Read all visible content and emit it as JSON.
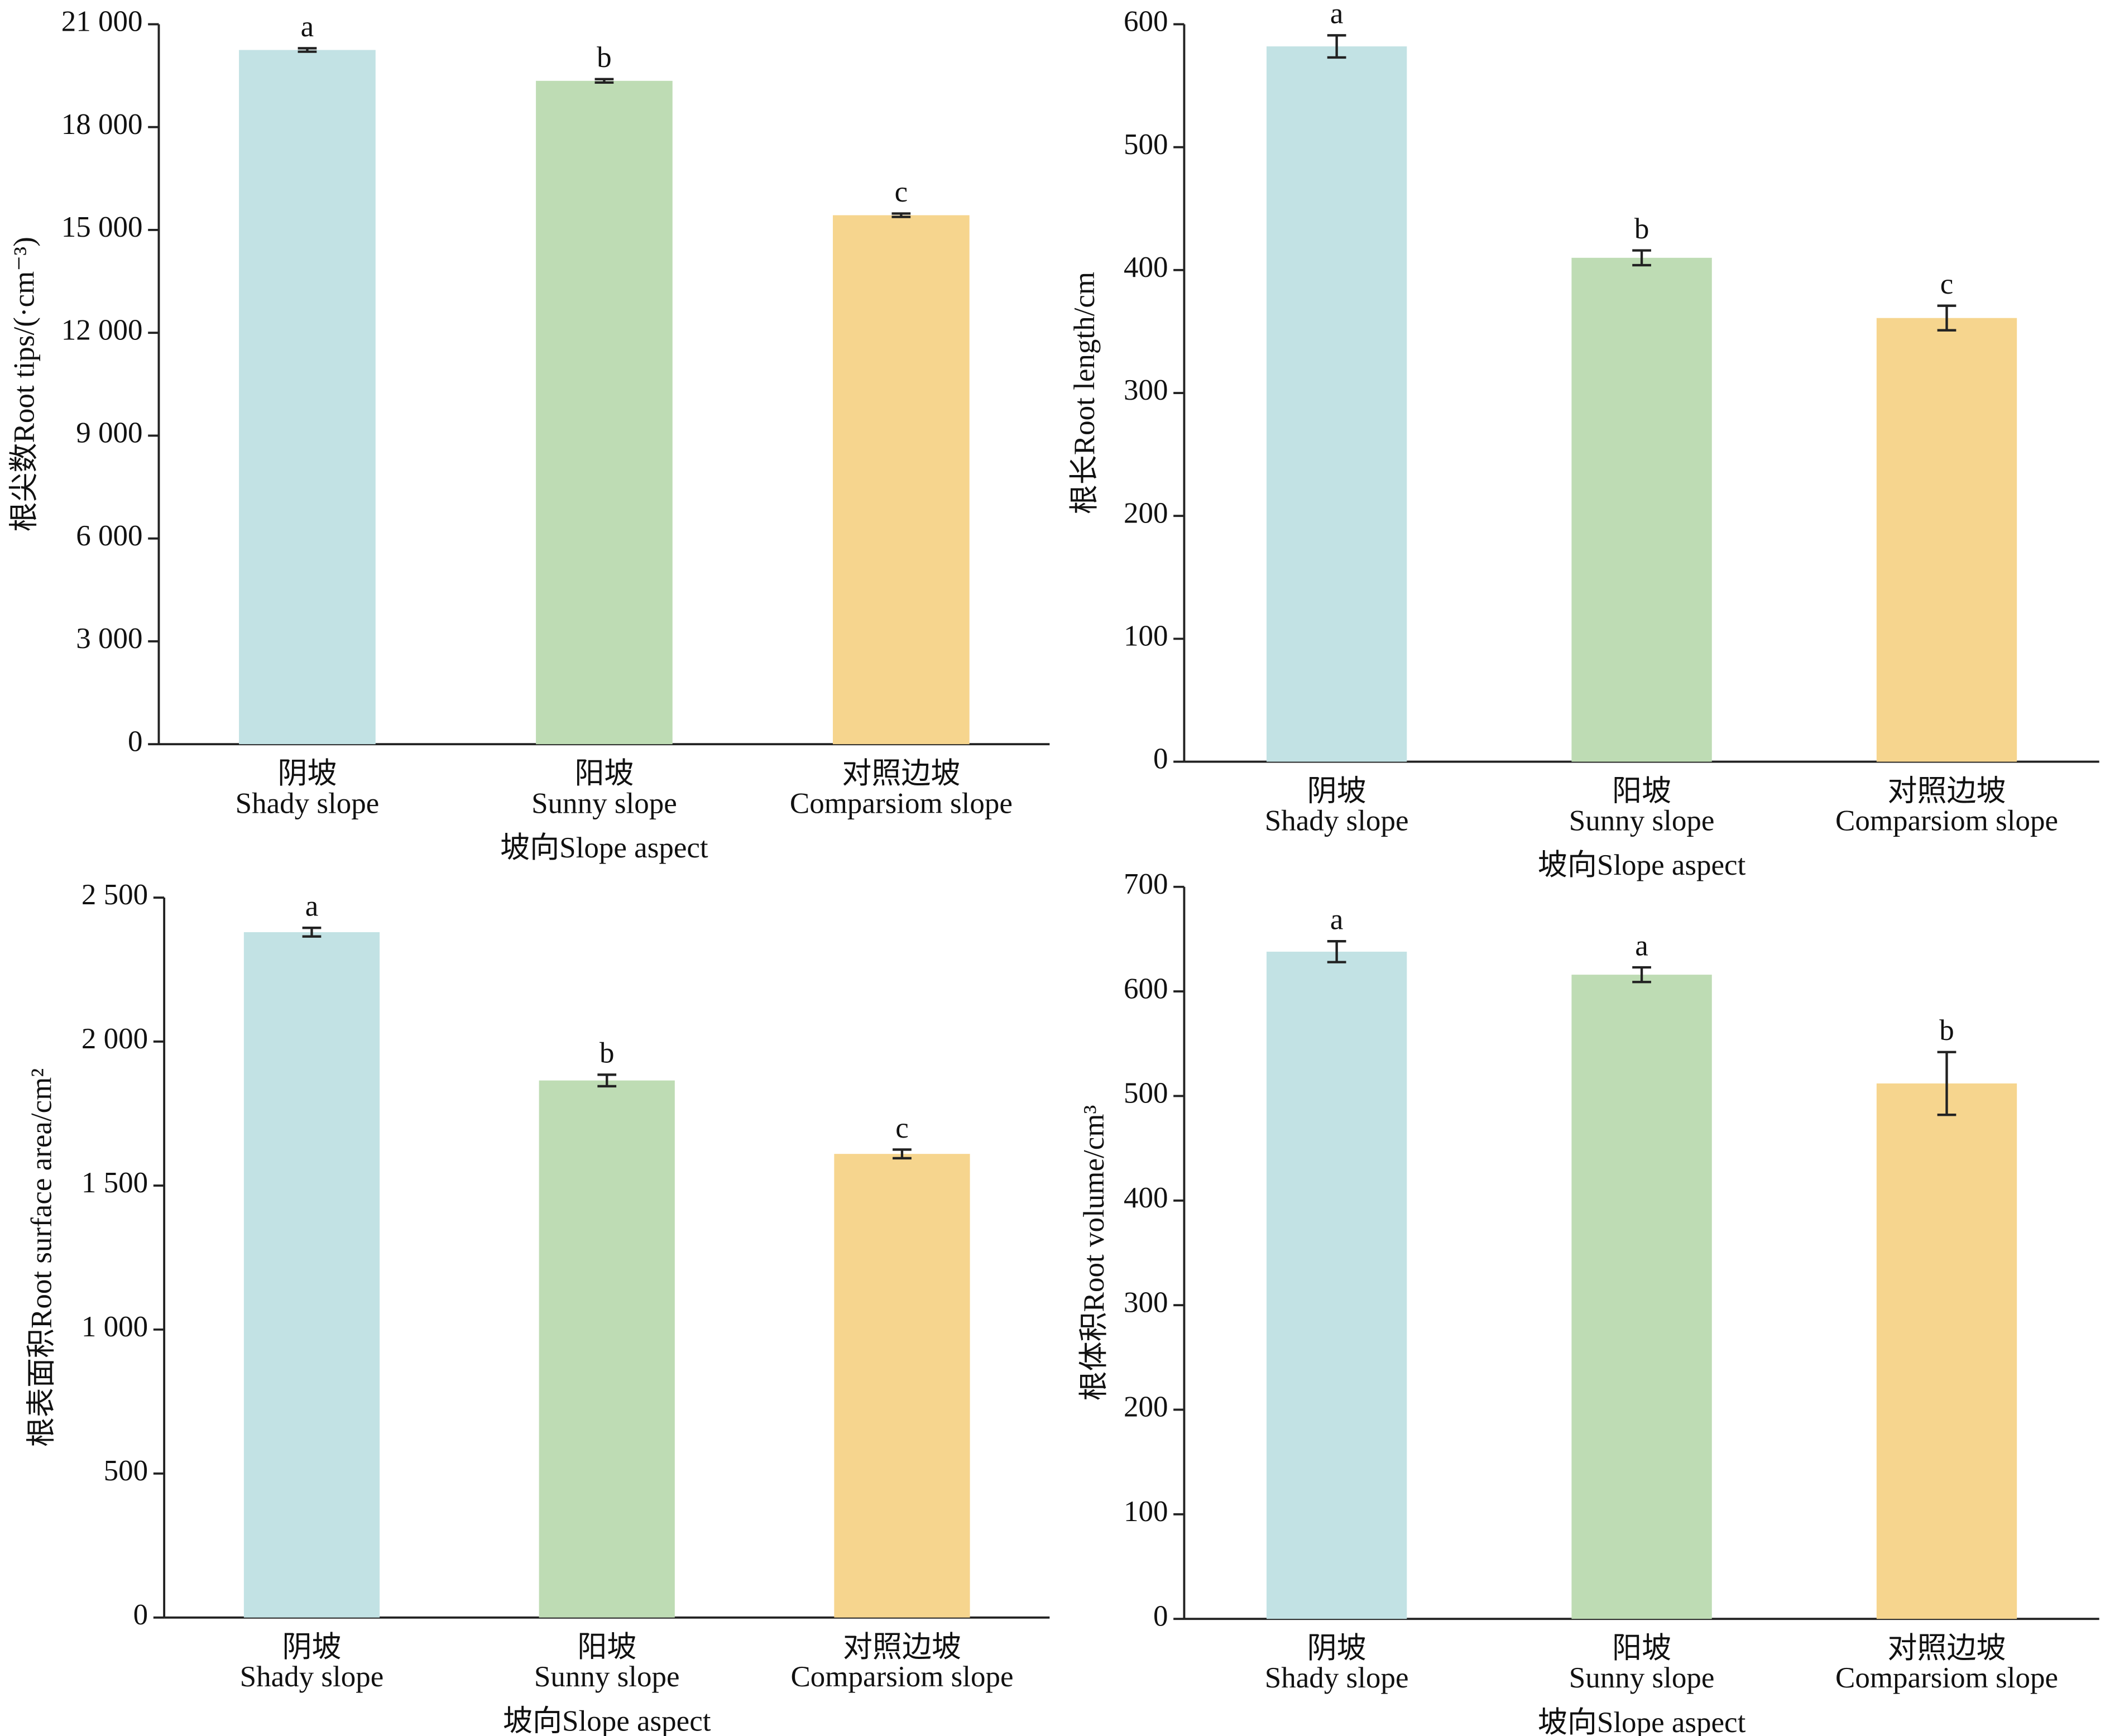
{
  "chart_data": [
    {
      "type": "bar",
      "ylabel": "根尖数Root tips/(·cm⁻³)",
      "xlabel": "坡向Slope aspect",
      "categories": [
        [
          "阴坡",
          "Shady slope"
        ],
        [
          "阳坡",
          "Sunny slope"
        ],
        [
          "对照边坡",
          "Comparsiom slope"
        ]
      ],
      "values": [
        20250,
        19350,
        15430
      ],
      "errors": [
        50,
        50,
        50
      ],
      "letters": [
        "a",
        "b",
        "c"
      ],
      "colors": [
        "#c2e2e4",
        "#bedcb4",
        "#f6d58e"
      ],
      "ylim": [
        0,
        21000
      ],
      "yticks": [
        0,
        {
          "value": 3000,
          "label": "3 000"
        },
        {
          "value": 6000,
          "label": "6 000"
        },
        {
          "value": 9000,
          "label": "9 000"
        },
        {
          "value": 12000,
          "label": "12 000"
        },
        {
          "value": 15000,
          "label": "15 000"
        },
        {
          "value": 18000,
          "label": "18 000"
        },
        {
          "value": 21000,
          "label": "21 000"
        }
      ]
    },
    {
      "type": "bar",
      "ylabel": "根长Root length/cm",
      "xlabel": "坡向Slope aspect",
      "categories": [
        [
          "阴坡",
          "Shady slope"
        ],
        [
          "阳坡",
          "Sunny slope"
        ],
        [
          "对照边坡",
          "Comparsiom slope"
        ]
      ],
      "values": [
        582,
        410,
        361
      ],
      "errors": [
        9,
        6,
        10
      ],
      "letters": [
        "a",
        "b",
        "c"
      ],
      "colors": [
        "#c2e2e4",
        "#bedcb4",
        "#f6d58e"
      ],
      "ylim": [
        0,
        600
      ],
      "yticks": [
        0,
        100,
        200,
        300,
        400,
        500,
        600
      ]
    },
    {
      "type": "bar",
      "ylabel": "根表面积Root surface area/cm²",
      "xlabel": "坡向Slope aspect",
      "categories": [
        [
          "阴坡",
          "Shady slope"
        ],
        [
          "阳坡",
          "Sunny slope"
        ],
        [
          "对照边坡",
          "Comparsiom slope"
        ]
      ],
      "values": [
        2380,
        1865,
        1610
      ],
      "errors": [
        15,
        20,
        15
      ],
      "letters": [
        "a",
        "b",
        "c"
      ],
      "colors": [
        "#c2e2e4",
        "#bedcb4",
        "#f6d58e"
      ],
      "ylim": [
        0,
        2500
      ],
      "yticks": [
        0,
        500,
        {
          "value": 1000,
          "label": "1 000"
        },
        {
          "value": 1500,
          "label": "1 500"
        },
        {
          "value": 2000,
          "label": "2 000"
        },
        {
          "value": 2500,
          "label": "2 500"
        }
      ]
    },
    {
      "type": "bar",
      "ylabel": "根体积Root volume/cm³",
      "xlabel": "坡向Slope aspect",
      "categories": [
        [
          "阴坡",
          "Shady slope"
        ],
        [
          "阳坡",
          "Sunny slope"
        ],
        [
          "对照边坡",
          "Comparsiom slope"
        ]
      ],
      "values": [
        638,
        616,
        512
      ],
      "errors": [
        10,
        7,
        30
      ],
      "letters": [
        "a",
        "a",
        "b"
      ],
      "colors": [
        "#c2e2e4",
        "#bedcb4",
        "#f6d58e"
      ],
      "ylim": [
        0,
        700
      ],
      "yticks": [
        0,
        100,
        200,
        300,
        400,
        500,
        600,
        700
      ]
    }
  ]
}
